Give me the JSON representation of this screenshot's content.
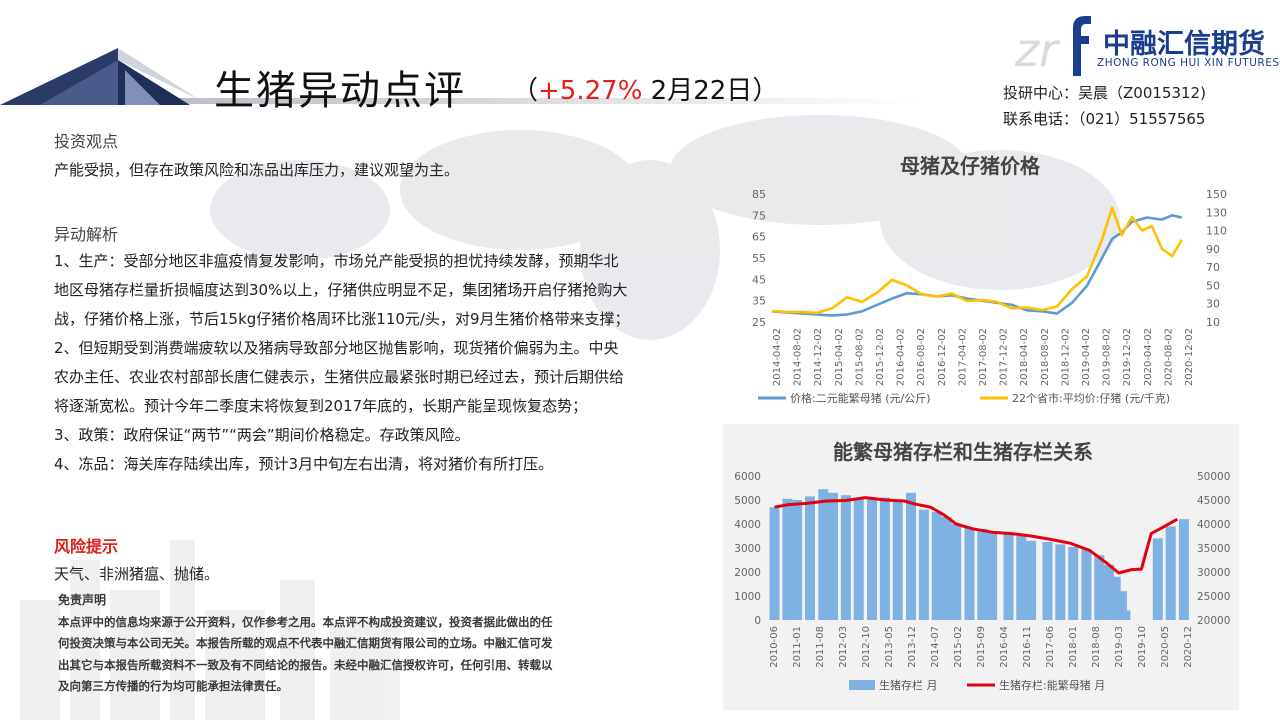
{
  "header": {
    "title": "生猪异动点评",
    "paren_open": "（",
    "change_pct": "+5.27%",
    "date": " 2月22日",
    "paren_close": "）",
    "logo_letter": "f",
    "logo_cn": "中融汇信期货",
    "logo_en": "ZHONG RONG HUI XIN FUTURES",
    "contact_line1": "投研中心：吴晨（Z0015312)",
    "contact_line2": "联系电话：（021）51557565"
  },
  "body": {
    "view_heading": "投资观点",
    "view_text": "产能受损，但存在政策风险和冻品出库压力，建议观望为主。",
    "analysis_heading": "异动解析",
    "analysis_lines": [
      "1、生产：受部分地区非瘟疫情复发影响，市场兑产能受损的担忧持续发酵，预期华北",
      "地区母猪存栏量折损幅度达到30%以上，仔猪供应明显不足，集团猪场开启仔猪抢购大",
      "战，仔猪价格上涨，节后15kg仔猪价格周环比涨110元/头，对9月生猪价格带来支撑；",
      "2、但短期受到消费端疲软以及猪病导致部分地区抛售影响，现货猪价偏弱为主。中央",
      "农办主任、农业农村部部长唐仁健表示，生猪供应最紧张时期已经过去，预计后期供给",
      "将逐渐宽松。预计今年二季度末将恢复到2017年底的，长期产能呈现恢复态势；",
      "3、政策：政府保证“两节”“两会”期间价格稳定。存政策风险。",
      "4、冻品：海关库存陆续出库，预计3月中旬左右出清，将对猪价有所打压。"
    ],
    "risk_heading": "风险提示",
    "risk_text": "天气、非洲猪瘟、抛储。",
    "disclaimer_heading": "免责声明",
    "disclaimer_lines": [
      "本点评中的信息均来源于公开资料，仅作参考之用。本点评不构成投资建议，投资者据此做出的任",
      "何投资决策与本公司无关。本报告所载的观点不代表中融汇信期货有限公司的立场。中融汇信可发",
      "出其它与本报告所载资料不一致及有不同结论的报告。未经中融汇信授权许可，任何引用、转载以",
      "及向第三方传播的行为均可能承担法律责任。"
    ]
  },
  "colors": {
    "accent_red": "#e0201a",
    "brand_blue": "#1a3d8f",
    "series_blue": "#5b9bd5",
    "series_yellow": "#ffc000",
    "bar_blue": "#7fb1e3",
    "line_red": "#e3000f"
  },
  "chart_data": [
    {
      "type": "line",
      "title": "母猪及仔猪价格",
      "x_tick_labels": [
        "2014-04-02",
        "2014-08-02",
        "2014-12-02",
        "2015-04-02",
        "2015-08-02",
        "2015-12-02",
        "2016-04-02",
        "2016-08-02",
        "2016-12-02",
        "2017-04-02",
        "2017-08-02",
        "2017-12-02",
        "2018-04-02",
        "2018-08-02",
        "2018-12-02",
        "2019-04-02",
        "2019-08-02",
        "2019-12-02",
        "2020-04-02",
        "2020-08-02",
        "2020-12-02"
      ],
      "y_left_ticks": [
        25,
        35,
        45,
        55,
        65,
        75,
        85
      ],
      "y_right_ticks": [
        10,
        30,
        50,
        70,
        90,
        110,
        130,
        150
      ],
      "ylim_left": [
        25,
        85
      ],
      "ylim_right": [
        10,
        150
      ],
      "legend_position": "bottom",
      "series": [
        {
          "name": "价格:二元能繁母猪 (元/公斤)",
          "axis": "left",
          "values": [
            [
              2014.25,
              30
            ],
            [
              2014.5,
              29.5
            ],
            [
              2014.75,
              29
            ],
            [
              2015.0,
              28.5
            ],
            [
              2015.25,
              28
            ],
            [
              2015.5,
              28.5
            ],
            [
              2015.75,
              30
            ],
            [
              2016.0,
              33
            ],
            [
              2016.25,
              36
            ],
            [
              2016.5,
              38.5
            ],
            [
              2016.75,
              38
            ],
            [
              2017.0,
              37
            ],
            [
              2017.25,
              37.5
            ],
            [
              2017.5,
              36
            ],
            [
              2017.75,
              35
            ],
            [
              2018.0,
              34
            ],
            [
              2018.25,
              33
            ],
            [
              2018.5,
              30.5
            ],
            [
              2018.75,
              30
            ],
            [
              2019.0,
              29
            ],
            [
              2019.25,
              34
            ],
            [
              2019.5,
              42
            ],
            [
              2019.75,
              55
            ],
            [
              2019.92,
              64
            ],
            [
              2020.08,
              67
            ],
            [
              2020.25,
              72
            ],
            [
              2020.5,
              74
            ],
            [
              2020.75,
              73
            ],
            [
              2020.92,
              75
            ],
            [
              2021.08,
              74
            ]
          ]
        },
        {
          "name": "22个省市:平均价:仔猪 (元/千克)",
          "axis": "right",
          "values": [
            [
              2014.25,
              22
            ],
            [
              2014.5,
              21
            ],
            [
              2014.75,
              21
            ],
            [
              2015.0,
              20
            ],
            [
              2015.25,
              25
            ],
            [
              2015.5,
              37
            ],
            [
              2015.75,
              32
            ],
            [
              2016.0,
              42
            ],
            [
              2016.25,
              56
            ],
            [
              2016.5,
              50
            ],
            [
              2016.75,
              40
            ],
            [
              2017.0,
              38
            ],
            [
              2017.25,
              41
            ],
            [
              2017.5,
              33
            ],
            [
              2017.75,
              34
            ],
            [
              2018.0,
              32
            ],
            [
              2018.25,
              25
            ],
            [
              2018.5,
              26
            ],
            [
              2018.75,
              23
            ],
            [
              2019.0,
              27
            ],
            [
              2019.25,
              46
            ],
            [
              2019.5,
              60
            ],
            [
              2019.75,
              100
            ],
            [
              2019.92,
              135
            ],
            [
              2020.08,
              105
            ],
            [
              2020.25,
              125
            ],
            [
              2020.42,
              110
            ],
            [
              2020.58,
              115
            ],
            [
              2020.75,
              90
            ],
            [
              2020.92,
              82
            ],
            [
              2021.08,
              100
            ]
          ]
        }
      ]
    },
    {
      "type": "bar",
      "title": "能繁母猪存栏和生猪存栏关系",
      "x_tick_labels": [
        "2010-06",
        "2011-01",
        "2011-08",
        "2012-03",
        "2012-10",
        "2013-05",
        "2013-12",
        "2014-07",
        "2015-02",
        "2015-09",
        "2016-04",
        "2016-11",
        "2017-06",
        "2018-01",
        "2018-08",
        "2019-03",
        "2019-10",
        "2020-05",
        "2020-12"
      ],
      "y_left_ticks": [
        0,
        1000,
        2000,
        3000,
        4000,
        5000,
        6000
      ],
      "y_right_ticks": [
        20000,
        25000,
        30000,
        35000,
        40000,
        45000,
        50000
      ],
      "ylim_left": [
        0,
        6000
      ],
      "ylim_right": [
        20000,
        50000
      ],
      "legend_position": "bottom",
      "series": [
        {
          "name": "生猪存栏 月",
          "axis": "left",
          "kind": "bar",
          "values": [
            [
              2010.42,
              4700
            ],
            [
              2010.75,
              5050
            ],
            [
              2011.0,
              5000
            ],
            [
              2011.33,
              5150
            ],
            [
              2011.67,
              5450
            ],
            [
              2011.92,
              5300
            ],
            [
              2012.25,
              5200
            ],
            [
              2012.58,
              5100
            ],
            [
              2012.92,
              5050
            ],
            [
              2013.25,
              5100
            ],
            [
              2013.58,
              4950
            ],
            [
              2013.92,
              5300
            ],
            [
              2014.25,
              4600
            ],
            [
              2014.58,
              4500
            ],
            [
              2014.83,
              4300
            ],
            [
              2015.08,
              4000
            ],
            [
              2015.42,
              3850
            ],
            [
              2015.75,
              3800
            ],
            [
              2016.0,
              3700
            ],
            [
              2016.42,
              3600
            ],
            [
              2016.75,
              3500
            ],
            [
              2017.0,
              3300
            ],
            [
              2017.42,
              3250
            ],
            [
              2017.75,
              3150
            ],
            [
              2018.08,
              3050
            ],
            [
              2018.42,
              2950
            ],
            [
              2018.75,
              2700
            ],
            [
              2019.0,
              2300
            ],
            [
              2019.17,
              1800
            ],
            [
              2019.33,
              1200
            ],
            [
              2019.42,
              400
            ],
            [
              2020.25,
              3400
            ],
            [
              2020.58,
              3900
            ],
            [
              2020.92,
              4200
            ]
          ]
        },
        {
          "name": "生猪存栏:能繁母猪 月",
          "axis": "right",
          "kind": "line",
          "values": [
            [
              2010.42,
              43500
            ],
            [
              2010.75,
              44000
            ],
            [
              2011.25,
              44300
            ],
            [
              2011.75,
              44800
            ],
            [
              2012.25,
              44900
            ],
            [
              2012.75,
              45500
            ],
            [
              2013.25,
              45000
            ],
            [
              2013.75,
              44800
            ],
            [
              2014.0,
              44200
            ],
            [
              2014.42,
              43500
            ],
            [
              2014.75,
              42000
            ],
            [
              2015.08,
              40000
            ],
            [
              2015.5,
              39000
            ],
            [
              2016.0,
              38300
            ],
            [
              2016.5,
              38000
            ],
            [
              2017.0,
              37500
            ],
            [
              2017.5,
              36800
            ],
            [
              2018.0,
              36000
            ],
            [
              2018.5,
              34500
            ],
            [
              2018.92,
              32000
            ],
            [
              2019.25,
              29800
            ],
            [
              2019.58,
              30500
            ],
            [
              2019.83,
              30600
            ],
            [
              2020.08,
              38000
            ],
            [
              2020.42,
              39500
            ],
            [
              2020.75,
              41000
            ]
          ]
        }
      ]
    }
  ]
}
